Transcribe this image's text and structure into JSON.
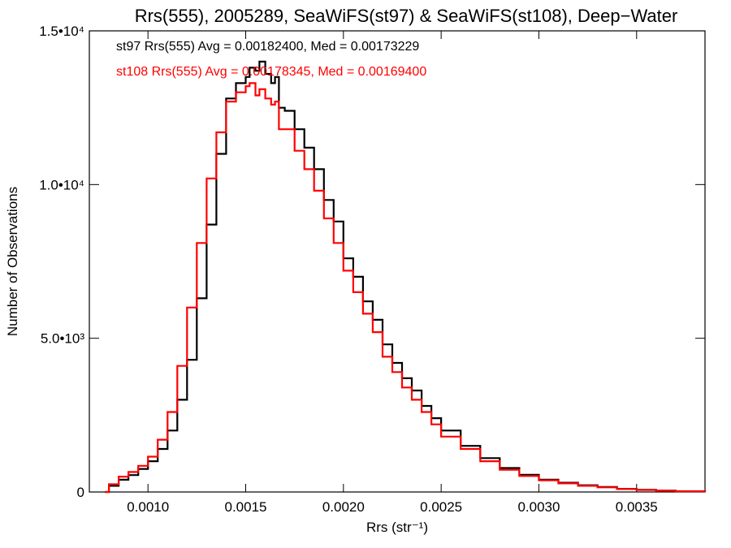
{
  "chart_data": {
    "type": "line",
    "step": true,
    "title": "Rrs(555), 2005289, SeaWiFS(st97) & SeaWiFS(st108), Deep−Water",
    "xlabel": "Rrs (str⁻¹)",
    "ylabel": "Number of Observations",
    "xlim": [
      0.0007,
      0.00385
    ],
    "ylim": [
      0,
      15000
    ],
    "xticks": [
      {
        "value": 0.001,
        "label": "0.0010"
      },
      {
        "value": 0.0015,
        "label": "0.0015"
      },
      {
        "value": 0.002,
        "label": "0.0020"
      },
      {
        "value": 0.0025,
        "label": "0.0025"
      },
      {
        "value": 0.003,
        "label": "0.0030"
      },
      {
        "value": 0.0035,
        "label": "0.0035"
      }
    ],
    "yticks": [
      {
        "value": 0,
        "label": "0"
      },
      {
        "value": 5000,
        "label": "5.0•10³"
      },
      {
        "value": 10000,
        "label": "1.0•10⁴"
      },
      {
        "value": 15000,
        "label": "1.5•10⁴"
      }
    ],
    "grid": false,
    "series": [
      {
        "name": "st97",
        "color": "#000000",
        "annotation": "st97 Rrs(555) Avg = 0.00182400, Med = 0.00173229",
        "x": [
          0.00078,
          0.0008,
          0.00085,
          0.0009,
          0.00095,
          0.001,
          0.00105,
          0.0011,
          0.00115,
          0.0012,
          0.00125,
          0.0013,
          0.00135,
          0.0014,
          0.00145,
          0.0015,
          0.00152,
          0.00155,
          0.00157,
          0.0016,
          0.00163,
          0.00165,
          0.00167,
          0.0017,
          0.00175,
          0.0018,
          0.00185,
          0.0019,
          0.00195,
          0.002,
          0.00205,
          0.0021,
          0.00215,
          0.0022,
          0.00225,
          0.0023,
          0.00235,
          0.0024,
          0.00245,
          0.0025,
          0.0026,
          0.0027,
          0.0028,
          0.0029,
          0.003,
          0.0031,
          0.0032,
          0.0033,
          0.0034,
          0.0035,
          0.0036,
          0.0037,
          0.00385
        ],
        "y": [
          0,
          200,
          400,
          550,
          750,
          1000,
          1400,
          2000,
          3000,
          4300,
          6300,
          8700,
          11000,
          12800,
          13300,
          13500,
          13800,
          13700,
          14000,
          13600,
          13300,
          13500,
          12500,
          12400,
          11800,
          11200,
          10500,
          9500,
          8800,
          7600,
          7000,
          6200,
          5600,
          4800,
          4200,
          3700,
          3300,
          2800,
          2400,
          2000,
          1500,
          1100,
          780,
          560,
          400,
          300,
          220,
          160,
          100,
          70,
          45,
          25,
          10
        ]
      },
      {
        "name": "st108",
        "color": "#ff0000",
        "annotation": "st108 Rrs(555) Avg = 0.00178345, Med = 0.00169400",
        "x": [
          0.00078,
          0.0008,
          0.00085,
          0.0009,
          0.00095,
          0.001,
          0.00105,
          0.0011,
          0.00115,
          0.0012,
          0.00125,
          0.0013,
          0.00135,
          0.0014,
          0.00145,
          0.0015,
          0.00152,
          0.00155,
          0.00157,
          0.0016,
          0.00163,
          0.00165,
          0.00167,
          0.0017,
          0.00175,
          0.0018,
          0.00185,
          0.0019,
          0.00195,
          0.002,
          0.00205,
          0.0021,
          0.00215,
          0.0022,
          0.00225,
          0.0023,
          0.00235,
          0.0024,
          0.00245,
          0.0025,
          0.0026,
          0.0027,
          0.0028,
          0.0029,
          0.003,
          0.0031,
          0.0032,
          0.0033,
          0.0034,
          0.0035,
          0.0036,
          0.0037,
          0.00385
        ],
        "y": [
          0,
          250,
          500,
          650,
          850,
          1150,
          1700,
          2600,
          4100,
          6000,
          8100,
          10200,
          11700,
          12700,
          13000,
          13200,
          13300,
          12900,
          13100,
          12800,
          12600,
          12700,
          11800,
          11800,
          11100,
          10500,
          9800,
          8900,
          8100,
          7200,
          6500,
          5800,
          5200,
          4400,
          3900,
          3400,
          3000,
          2600,
          2200,
          1800,
          1400,
          1000,
          720,
          520,
          380,
          280,
          200,
          150,
          95,
          65,
          40,
          22,
          8
        ]
      }
    ]
  }
}
